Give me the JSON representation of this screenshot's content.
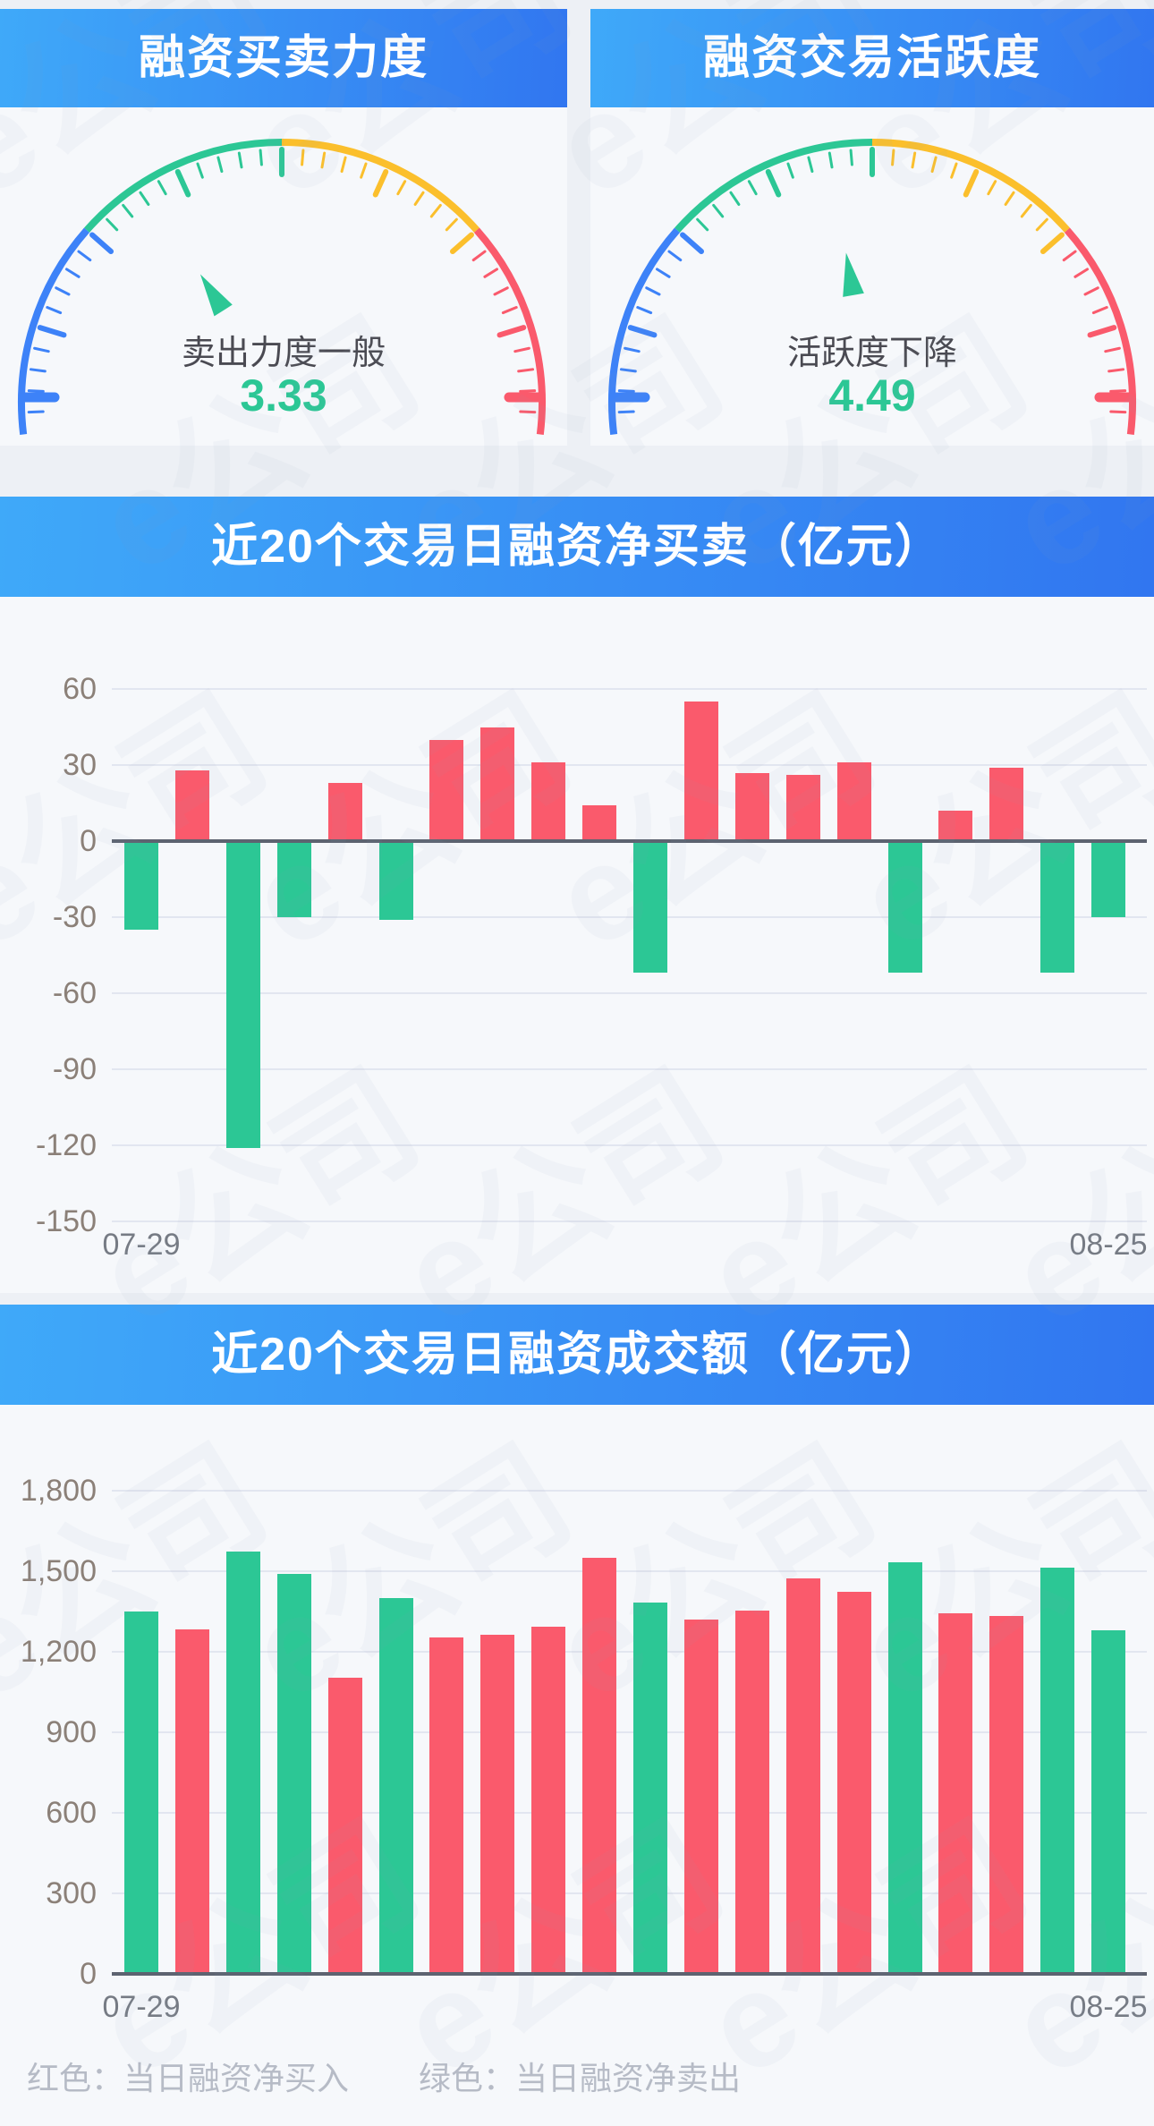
{
  "colors": {
    "red": "#FA5A6C",
    "green": "#2CC795",
    "blue": "#3D82F8",
    "yellow": "#FBBF2C",
    "banner_gradient_start": "#3FA9F9",
    "banner_gradient_end": "#3176F0",
    "page_bg": "#EDF0F5",
    "card_bg": "#F6F8FB",
    "grid_line": "#E2E6F0",
    "axis_line": "#5D6370",
    "y_label": "#8B8078",
    "x_label": "#767B84",
    "footer_text": "#B6BBC6",
    "status_text": "#4A4A52"
  },
  "watermark": "e公司",
  "footer": {
    "red_label": "红色：当日融资净买入",
    "green_label": "绿色：当日融资净卖出"
  },
  "gauge_scale": {
    "min": 0,
    "max": 10,
    "segments": [
      {
        "to": 2.5,
        "color_key": "blue"
      },
      {
        "to": 5,
        "color_key": "green"
      },
      {
        "to": 7.5,
        "color_key": "yellow"
      },
      {
        "to": 10,
        "color_key": "red"
      }
    ]
  },
  "chart_data": [
    {
      "type": "gauge",
      "title": "融资买卖力度",
      "label": "卖出力度一般",
      "value": 3.33,
      "value_text": "3.33",
      "range": [
        0,
        10
      ],
      "segment_colors": [
        "blue",
        "green",
        "yellow",
        "red"
      ]
    },
    {
      "type": "gauge",
      "title": "融资交易活跃度",
      "label": "活跃度下降",
      "value": 4.49,
      "value_text": "4.49",
      "range": [
        0,
        10
      ],
      "segment_colors": [
        "blue",
        "green",
        "yellow",
        "red"
      ]
    },
    {
      "type": "bar",
      "title": "近20个交易日融资净买卖（亿元）",
      "x_first": "07-29",
      "x_last": "08-25",
      "x_labels": [
        "07-29",
        "08-25"
      ],
      "ylim": [
        -150,
        60
      ],
      "yticks": [
        60,
        30,
        0,
        -30,
        -60,
        -90,
        -120,
        -150
      ],
      "ytick_labels": [
        "60",
        "30",
        "0",
        "-30",
        "-60",
        "-90",
        "-120",
        "-150"
      ],
      "values": [
        -35,
        28,
        -121,
        -30,
        23,
        -31,
        40,
        45,
        31,
        14,
        -52,
        55,
        27,
        26,
        31,
        -52,
        12,
        29,
        -52,
        -30
      ],
      "bar_colors": [
        "green",
        "red",
        "green",
        "green",
        "red",
        "green",
        "red",
        "red",
        "red",
        "red",
        "green",
        "red",
        "red",
        "red",
        "red",
        "green",
        "red",
        "red",
        "green",
        "green"
      ],
      "grid": true,
      "legend_note": "red = net buy day, green = net sell day"
    },
    {
      "type": "bar",
      "title": "近20个交易日融资成交额（亿元）",
      "x_first": "07-29",
      "x_last": "08-25",
      "x_labels": [
        "07-29",
        "08-25"
      ],
      "ylim": [
        0,
        1800
      ],
      "yticks": [
        1800,
        1500,
        1200,
        900,
        600,
        300,
        0
      ],
      "ytick_labels": [
        "1,800",
        "1,500",
        "1,200",
        "900",
        "600",
        "300",
        "0"
      ],
      "values": [
        1350,
        1285,
        1575,
        1490,
        1105,
        1400,
        1255,
        1265,
        1295,
        1550,
        1385,
        1320,
        1355,
        1475,
        1425,
        1535,
        1345,
        1335,
        1515,
        1280
      ],
      "bar_colors": [
        "green",
        "red",
        "green",
        "green",
        "red",
        "green",
        "red",
        "red",
        "red",
        "red",
        "green",
        "red",
        "red",
        "red",
        "red",
        "green",
        "red",
        "red",
        "green",
        "green"
      ],
      "grid": true,
      "legend_note": "red = net buy day, green = net sell day"
    }
  ]
}
